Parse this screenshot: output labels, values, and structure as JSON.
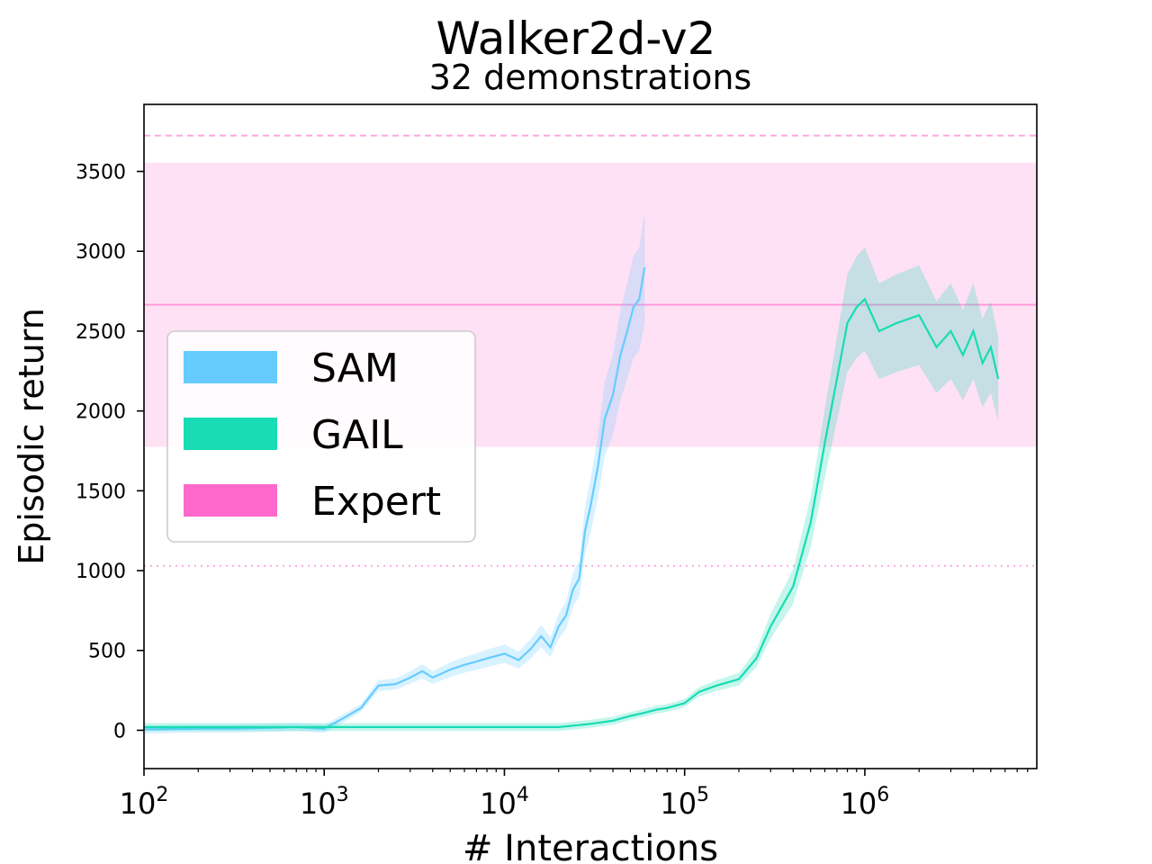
{
  "chart_data": {
    "type": "line",
    "title": "Walker2d-v2",
    "subtitle": "32 demonstrations",
    "xlabel": "# Interactions",
    "ylabel": "Episodic return",
    "xscale": "log",
    "xlim": [
      100,
      9000000
    ],
    "ylim": [
      -240,
      3920
    ],
    "x_ticks": [
      {
        "value": 100,
        "base": "10",
        "exp": "2"
      },
      {
        "value": 1000,
        "base": "10",
        "exp": "3"
      },
      {
        "value": 10000,
        "base": "10",
        "exp": "4"
      },
      {
        "value": 100000,
        "base": "10",
        "exp": "5"
      },
      {
        "value": 1000000,
        "base": "10",
        "exp": "6"
      }
    ],
    "y_ticks": [
      0,
      500,
      1000,
      1500,
      2000,
      2500,
      3000,
      3500
    ],
    "grid": false,
    "legend_position": "center-left",
    "expert": {
      "mean": 2665,
      "band": [
        1775,
        3555
      ],
      "max": 3725,
      "min": 1030,
      "color": "#ff69cc"
    },
    "series": [
      {
        "name": "SAM",
        "color": "#66ccff",
        "x": [
          100,
          200,
          300,
          500,
          700,
          1000,
          1300,
          1600,
          2000,
          2500,
          3000,
          3500,
          4000,
          5000,
          6000,
          7000,
          8000,
          10000,
          12000,
          14000,
          16000,
          18000,
          20000,
          22000,
          24000,
          26000,
          28000,
          30000,
          33000,
          36000,
          40000,
          44000,
          48000,
          52000,
          56000,
          60000
        ],
        "y": [
          5,
          10,
          10,
          15,
          20,
          10,
          80,
          140,
          280,
          290,
          330,
          370,
          330,
          380,
          410,
          430,
          450,
          480,
          440,
          510,
          590,
          520,
          650,
          720,
          880,
          950,
          1250,
          1400,
          1650,
          1950,
          2100,
          2350,
          2500,
          2650,
          2700,
          2900
        ]
      },
      {
        "name": "GAIL",
        "color": "#17dcb4",
        "x": [
          100,
          1000,
          10000,
          20000,
          30000,
          40000,
          50000,
          60000,
          70000,
          80000,
          100000,
          120000,
          150000,
          200000,
          250000,
          300000,
          400000,
          500000,
          600000,
          700000,
          800000,
          900000,
          1000000,
          1200000,
          1500000,
          2000000,
          2500000,
          3000000,
          3500000,
          4000000,
          4500000,
          5000000,
          5500000
        ],
        "y": [
          20,
          20,
          20,
          20,
          40,
          60,
          90,
          110,
          130,
          140,
          170,
          240,
          280,
          320,
          450,
          650,
          900,
          1300,
          1800,
          2200,
          2550,
          2650,
          2700,
          2500,
          2550,
          2600,
          2400,
          2500,
          2350,
          2500,
          2300,
          2400,
          2200
        ]
      },
      {
        "name": "Expert",
        "color": "#ff69cc"
      }
    ]
  }
}
